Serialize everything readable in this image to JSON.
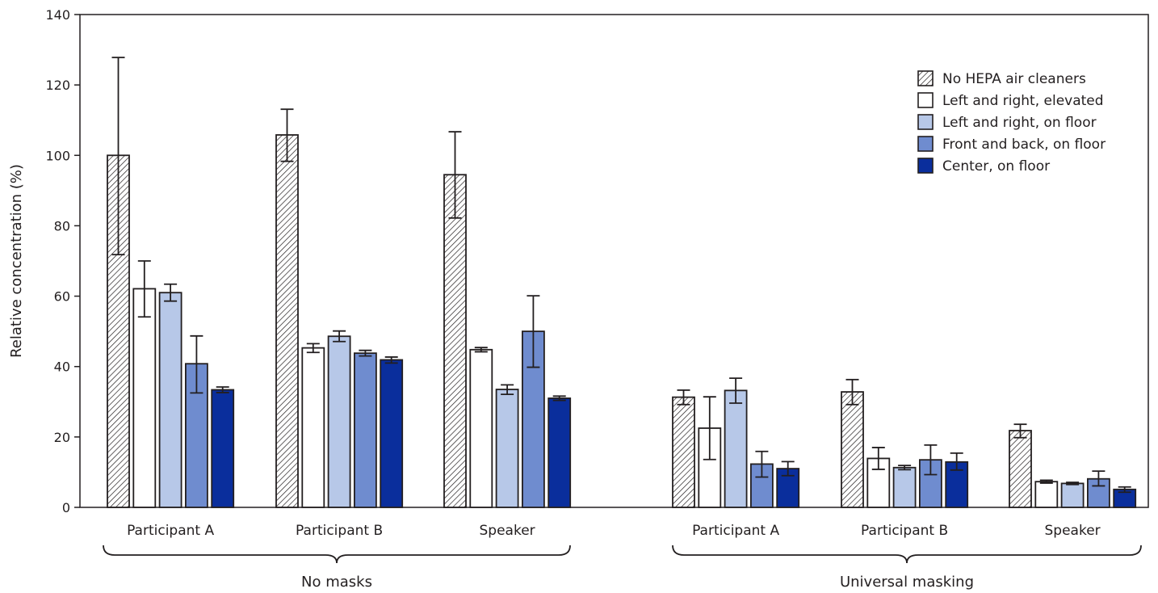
{
  "chart_data": {
    "type": "bar",
    "ylabel": "Relative concentration (%)",
    "ylim": [
      0,
      140
    ],
    "yticks": [
      0,
      20,
      40,
      60,
      80,
      100,
      120,
      140
    ],
    "legend_position": "top-right",
    "groups": [
      {
        "label": "No masks",
        "categories": [
          "Participant A",
          "Participant B",
          "Speaker"
        ]
      },
      {
        "label": "Universal masking",
        "categories": [
          "Participant A",
          "Participant B",
          "Speaker"
        ]
      }
    ],
    "series": [
      {
        "name": "No HEPA air cleaners",
        "color": "#ffffff",
        "pattern": "hatch",
        "values": [
          100,
          105.8,
          94.5,
          31.3,
          32.8,
          21.8
        ],
        "err_low": [
          71.8,
          98.3,
          82.2,
          29.2,
          29.2,
          19.8
        ],
        "err_high": [
          127.8,
          113.1,
          106.7,
          33.3,
          36.3,
          23.6
        ]
      },
      {
        "name": "Left and right, elevated",
        "color": "#ffffff",
        "values": [
          62.1,
          45.3,
          44.8,
          22.5,
          13.9,
          7.3
        ],
        "err_low": [
          54.1,
          44.0,
          44.2,
          13.6,
          10.8,
          6.9
        ],
        "err_high": [
          70.0,
          46.5,
          45.4,
          31.4,
          17.0,
          7.7
        ]
      },
      {
        "name": "Left and right, on floor",
        "color": "#b7c8e8",
        "values": [
          61.0,
          48.6,
          33.5,
          33.2,
          11.3,
          6.8
        ],
        "err_low": [
          58.6,
          47.1,
          32.1,
          29.6,
          10.7,
          6.5
        ],
        "err_high": [
          63.4,
          50.1,
          34.8,
          36.7,
          11.9,
          7.1
        ]
      },
      {
        "name": "Front and back, on floor",
        "color": "#6f8ccf",
        "values": [
          40.8,
          43.8,
          50.0,
          12.3,
          13.5,
          8.1
        ],
        "err_low": [
          32.5,
          43.0,
          39.8,
          8.6,
          9.3,
          6.1
        ],
        "err_high": [
          48.7,
          44.6,
          60.1,
          15.9,
          17.7,
          10.3
        ]
      },
      {
        "name": "Center, on floor",
        "color": "#0a2e9c",
        "values": [
          33.4,
          41.9,
          31.0,
          11.0,
          12.9,
          5.1
        ],
        "err_low": [
          32.6,
          41.0,
          30.4,
          9.0,
          10.6,
          4.3
        ],
        "err_high": [
          34.2,
          42.7,
          31.6,
          13.0,
          15.4,
          5.8
        ]
      }
    ]
  }
}
